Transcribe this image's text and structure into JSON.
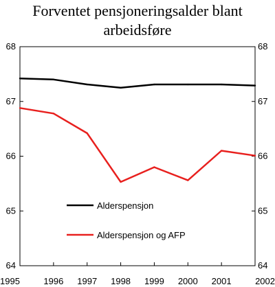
{
  "chart_data": {
    "type": "line",
    "title_lines": [
      "Forventet pensjoneringsalder blant",
      "arbeidsføre"
    ],
    "x": [
      "1995",
      "1996",
      "1997",
      "1998",
      "1999",
      "2000",
      "2001",
      "2002"
    ],
    "ylim": [
      64,
      68
    ],
    "yticks": [
      "64",
      "65",
      "66",
      "67",
      "68"
    ],
    "grid": false,
    "legend_position": "lower-center",
    "series": [
      {
        "name": "Alderspensjon",
        "color": "#000000",
        "values": [
          67.42,
          67.4,
          67.31,
          67.25,
          67.31,
          67.31,
          67.31,
          67.29
        ]
      },
      {
        "name": "Alderspensjon og AFP",
        "color": "#e8201e",
        "values": [
          66.88,
          66.78,
          66.42,
          65.53,
          65.8,
          65.56,
          66.1,
          66.01
        ]
      }
    ]
  }
}
